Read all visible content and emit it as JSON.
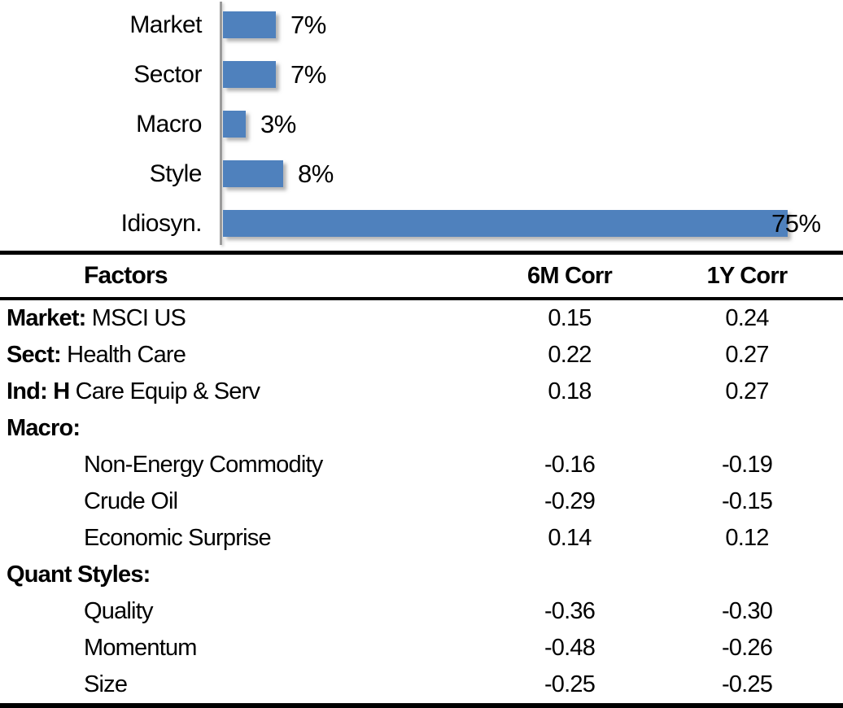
{
  "chart_data": [
    {
      "type": "bar",
      "orientation": "horizontal",
      "title": "",
      "categories": [
        "Market",
        "Sector",
        "Macro",
        "Style",
        "Idiosyn."
      ],
      "values": [
        7,
        7,
        3,
        8,
        75
      ],
      "value_labels": [
        "7%",
        "7%",
        "3%",
        "8%",
        "75%"
      ],
      "xlim": [
        0,
        80
      ],
      "grid": false,
      "legend": false,
      "bar_color": "#4F81BD",
      "axis_color": "#9B9B9B",
      "label_color": "#000000"
    },
    {
      "type": "table",
      "columns": [
        "Factors",
        "6M Corr",
        "1Y Corr"
      ],
      "rows": [
        {
          "bold": "Market:",
          "rest": " MSCI US",
          "corr6m": "0.15",
          "corr1y": "0.24"
        },
        {
          "bold": "Sect:",
          "rest": " Health Care",
          "corr6m": "0.22",
          "corr1y": "0.27"
        },
        {
          "bold": "Ind: H",
          "rest": " Care Equip & Serv",
          "corr6m": "0.18",
          "corr1y": "0.27"
        },
        {
          "bold": "Macro:",
          "rest": "",
          "corr6m": "",
          "corr1y": ""
        },
        {
          "bold": "",
          "rest": "Non-Energy Commodity",
          "corr6m": "-0.16",
          "corr1y": "-0.19"
        },
        {
          "bold": "",
          "rest": "Crude Oil",
          "corr6m": "-0.29",
          "corr1y": "-0.15"
        },
        {
          "bold": "",
          "rest": "Economic Surprise",
          "corr6m": "0.14",
          "corr1y": "0.12"
        },
        {
          "bold": "Quant Styles:",
          "rest": "",
          "corr6m": "",
          "corr1y": ""
        },
        {
          "bold": "",
          "rest": "Quality",
          "corr6m": "-0.36",
          "corr1y": "-0.30"
        },
        {
          "bold": "",
          "rest": "Momentum",
          "corr6m": "-0.48",
          "corr1y": "-0.26"
        },
        {
          "bold": "",
          "rest": "Size",
          "corr6m": "-0.25",
          "corr1y": "-0.25"
        }
      ]
    }
  ]
}
